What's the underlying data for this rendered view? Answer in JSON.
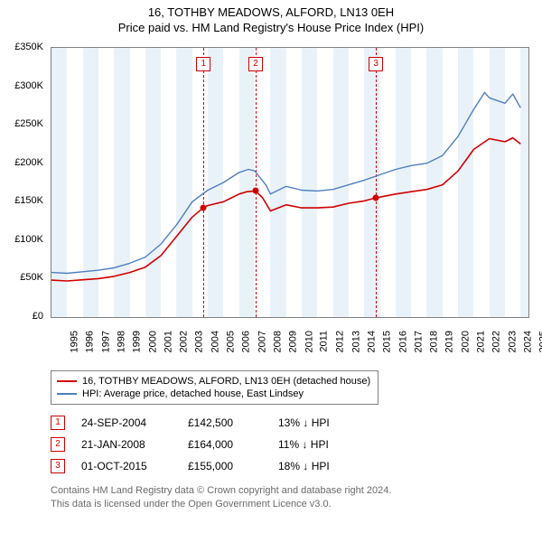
{
  "title": {
    "line1": "16, TOTHBY MEADOWS, ALFORD, LN13 0EH",
    "line2": "Price paid vs. HM Land Registry's House Price Index (HPI)"
  },
  "chart": {
    "type": "line",
    "background_color": "#ffffff",
    "band_color": "#eaf2f9",
    "border_color": "#808080",
    "x": {
      "min": 1995,
      "max": 2025.5,
      "ticks": [
        1995,
        1996,
        1997,
        1998,
        1999,
        2000,
        2001,
        2002,
        2003,
        2004,
        2005,
        2006,
        2007,
        2008,
        2009,
        2010,
        2011,
        2012,
        2013,
        2014,
        2015,
        2016,
        2017,
        2018,
        2019,
        2020,
        2021,
        2022,
        2023,
        2024,
        2025
      ]
    },
    "y": {
      "min": 0,
      "max": 350000,
      "ticks": [
        0,
        50000,
        100000,
        150000,
        200000,
        250000,
        300000,
        350000
      ],
      "tick_labels": [
        "£0",
        "£50K",
        "£100K",
        "£150K",
        "£200K",
        "£250K",
        "£300K",
        "£350K"
      ]
    },
    "alt_year_bands": [
      [
        1995,
        1996
      ],
      [
        1997,
        1998
      ],
      [
        1999,
        2000
      ],
      [
        2001,
        2002
      ],
      [
        2003,
        2004
      ],
      [
        2005,
        2006
      ],
      [
        2007,
        2008
      ],
      [
        2009,
        2010
      ],
      [
        2011,
        2012
      ],
      [
        2013,
        2014
      ],
      [
        2015,
        2016
      ],
      [
        2017,
        2018
      ],
      [
        2019,
        2020
      ],
      [
        2021,
        2022
      ],
      [
        2023,
        2024
      ],
      [
        2025,
        2025.5
      ]
    ],
    "series": [
      {
        "id": "property",
        "label": "16, TOTHBY MEADOWS, ALFORD, LN13 0EH (detached house)",
        "color": "#d00000",
        "line_width": 1.6,
        "points": [
          [
            1995,
            48000
          ],
          [
            1996,
            47000
          ],
          [
            1997,
            48500
          ],
          [
            1998,
            50000
          ],
          [
            1999,
            53000
          ],
          [
            2000,
            58000
          ],
          [
            2001,
            65000
          ],
          [
            2002,
            80000
          ],
          [
            2003,
            105000
          ],
          [
            2004,
            130000
          ],
          [
            2004.73,
            142500
          ],
          [
            2005,
            145000
          ],
          [
            2006,
            150000
          ],
          [
            2007,
            160000
          ],
          [
            2007.5,
            163000
          ],
          [
            2008.06,
            164000
          ],
          [
            2008.5,
            155000
          ],
          [
            2009,
            138000
          ],
          [
            2010,
            146000
          ],
          [
            2011,
            142000
          ],
          [
            2012,
            142000
          ],
          [
            2013,
            143000
          ],
          [
            2014,
            148000
          ],
          [
            2015,
            151000
          ],
          [
            2015.75,
            155000
          ],
          [
            2016,
            156000
          ],
          [
            2017,
            160000
          ],
          [
            2018,
            163000
          ],
          [
            2019,
            166000
          ],
          [
            2020,
            172000
          ],
          [
            2021,
            190000
          ],
          [
            2022,
            218000
          ],
          [
            2023,
            232000
          ],
          [
            2024,
            228000
          ],
          [
            2024.5,
            233000
          ],
          [
            2025,
            225000
          ]
        ]
      },
      {
        "id": "hpi",
        "label": "HPI: Average price, detached house, East Lindsey",
        "color": "#4f7fbf",
        "line_width": 1.4,
        "points": [
          [
            1995,
            58000
          ],
          [
            1996,
            57000
          ],
          [
            1997,
            59000
          ],
          [
            1998,
            61000
          ],
          [
            1999,
            64000
          ],
          [
            2000,
            70000
          ],
          [
            2001,
            78000
          ],
          [
            2002,
            95000
          ],
          [
            2003,
            120000
          ],
          [
            2004,
            150000
          ],
          [
            2005,
            165000
          ],
          [
            2006,
            175000
          ],
          [
            2007,
            188000
          ],
          [
            2007.6,
            192000
          ],
          [
            2008,
            190000
          ],
          [
            2008.7,
            172000
          ],
          [
            2009,
            160000
          ],
          [
            2010,
            170000
          ],
          [
            2011,
            165000
          ],
          [
            2012,
            164000
          ],
          [
            2013,
            166000
          ],
          [
            2014,
            172000
          ],
          [
            2015,
            178000
          ],
          [
            2016,
            185000
          ],
          [
            2017,
            192000
          ],
          [
            2018,
            197000
          ],
          [
            2019,
            200000
          ],
          [
            2020,
            210000
          ],
          [
            2021,
            235000
          ],
          [
            2022,
            270000
          ],
          [
            2022.7,
            292000
          ],
          [
            2023,
            285000
          ],
          [
            2024,
            278000
          ],
          [
            2024.5,
            290000
          ],
          [
            2025,
            272000
          ]
        ]
      }
    ],
    "sale_markers": [
      {
        "n": "1",
        "year": 2004.73,
        "price": 142500
      },
      {
        "n": "2",
        "year": 2008.06,
        "price": 164000
      },
      {
        "n": "3",
        "year": 2015.75,
        "price": 155000
      }
    ],
    "marker_line_color": "#d00000",
    "marker_box": {
      "border_color": "#d00000",
      "text_color": "#d00000",
      "bg": "#ffffff",
      "size": 14
    }
  },
  "legend": {
    "items": [
      {
        "color": "#d00000",
        "label": "16, TOTHBY MEADOWS, ALFORD, LN13 0EH (detached house)"
      },
      {
        "color": "#4f7fbf",
        "label": "HPI: Average price, detached house, East Lindsey"
      }
    ]
  },
  "sales": [
    {
      "n": "1",
      "date": "24-SEP-2004",
      "price": "£142,500",
      "diff_pct": "13%",
      "diff_dir": "↓",
      "diff_suffix": "HPI"
    },
    {
      "n": "2",
      "date": "21-JAN-2008",
      "price": "£164,000",
      "diff_pct": "11%",
      "diff_dir": "↓",
      "diff_suffix": "HPI"
    },
    {
      "n": "3",
      "date": "01-OCT-2015",
      "price": "£155,000",
      "diff_pct": "18%",
      "diff_dir": "↓",
      "diff_suffix": "HPI"
    }
  ],
  "footer": {
    "line1": "Contains HM Land Registry data © Crown copyright and database right 2024.",
    "line2": "This data is licensed under the Open Government Licence v3.0."
  }
}
